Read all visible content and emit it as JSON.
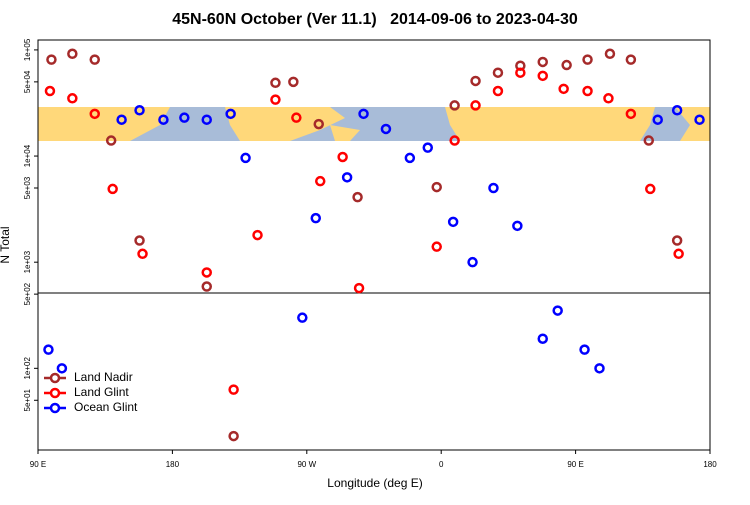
{
  "chart_data": {
    "type": "scatter",
    "log_y": true,
    "title": "45N-60N October (Ver 11.1)   2014-09-06 to 2023-04-30",
    "xlabel": "Longitude (deg E)",
    "ylabel": "N Total",
    "xlim": [
      90,
      540
    ],
    "xticks": [
      {
        "value": 90,
        "label": "90 E"
      },
      {
        "value": 180,
        "label": "180"
      },
      {
        "value": 270,
        "label": "90 W"
      },
      {
        "value": 360,
        "label": "0"
      },
      {
        "value": 450,
        "label": "90 E"
      },
      {
        "value": 540,
        "label": "180"
      }
    ],
    "ylim": [
      17,
      124000
    ],
    "yticks": [
      {
        "value": 100000,
        "label": "1e+05"
      },
      {
        "value": 50000,
        "label": "5e+04"
      },
      {
        "value": 10000,
        "label": "1e+04"
      },
      {
        "value": 5000,
        "label": "5e+03"
      },
      {
        "value": 1000,
        "label": "1e+03"
      },
      {
        "value": 500,
        "label": "5e+02"
      },
      {
        "value": 100,
        "label": "1e+02"
      },
      {
        "value": 50,
        "label": "5e+01"
      }
    ],
    "legend": "lower left",
    "series": [
      {
        "name": "Land Nadir",
        "color": "#a52a2a",
        "x": [
          99,
          113,
          128,
          139,
          158,
          203,
          221,
          249,
          261,
          278,
          304,
          357,
          369,
          383,
          398,
          413,
          428,
          444,
          458,
          473,
          487,
          499,
          518
        ],
        "values": [
          81000,
          92000,
          81000,
          14000,
          1600,
          590,
          23,
          49000,
          50000,
          20000,
          4100,
          5100,
          30000,
          51000,
          61000,
          71000,
          77000,
          72000,
          81000,
          92000,
          81000,
          14000,
          1600
        ]
      },
      {
        "name": "Land Glint",
        "color": "#ff0000",
        "x": [
          98,
          113,
          128,
          140,
          160,
          203,
          221,
          237,
          249,
          263,
          279,
          294,
          305,
          357,
          369,
          383,
          398,
          413,
          428,
          442,
          458,
          472,
          487,
          500,
          519
        ],
        "values": [
          41000,
          35000,
          25000,
          4900,
          1200,
          800,
          63,
          1800,
          34000,
          23000,
          5800,
          9800,
          570,
          1400,
          14000,
          30000,
          41000,
          61000,
          57000,
          43000,
          41000,
          35000,
          25000,
          4900,
          1200
        ]
      },
      {
        "name": "Ocean Glint",
        "color": "#0000ff",
        "x": [
          97,
          106,
          146,
          158,
          174,
          188,
          203,
          219,
          229,
          267,
          276,
          297,
          308,
          323,
          339,
          351,
          368,
          381,
          395,
          411,
          428,
          438,
          456,
          466,
          505,
          518,
          533
        ],
        "values": [
          150,
          100,
          22000,
          27000,
          22000,
          23000,
          22000,
          25000,
          9600,
          300,
          2600,
          6300,
          25000,
          18000,
          9600,
          12000,
          2400,
          1000,
          5000,
          2200,
          190,
          350,
          150,
          100,
          22000,
          27000,
          22000
        ]
      }
    ]
  }
}
